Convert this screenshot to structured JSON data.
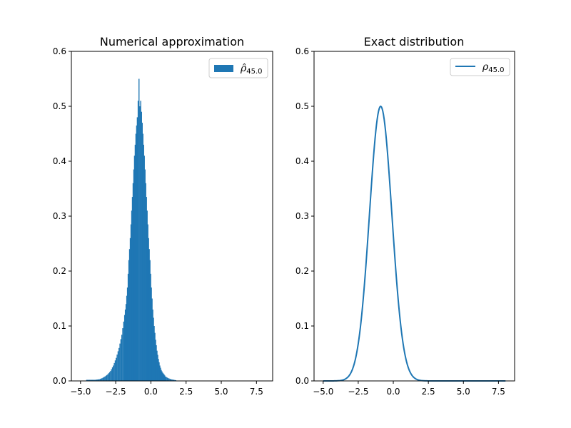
{
  "chart_data": [
    {
      "type": "bar",
      "title": "Numerical approximation",
      "xlabel": "",
      "ylabel": "",
      "xlim": [
        -5.65,
        8.65
      ],
      "ylim": [
        0,
        0.6
      ],
      "x_ticks": [
        -5.0,
        -2.5,
        0.0,
        2.5,
        5.0,
        7.5
      ],
      "x_tick_labels": [
        "−5.0",
        "−2.5",
        "0.0",
        "2.5",
        "5.0",
        "7.5"
      ],
      "y_ticks": [
        0.0,
        0.1,
        0.2,
        0.3,
        0.4,
        0.5,
        0.6
      ],
      "y_tick_labels": [
        "0.0",
        "0.1",
        "0.2",
        "0.3",
        "0.4",
        "0.5",
        "0.6"
      ],
      "bin_width": 0.06,
      "bins": [
        [
          -4.6,
          0.002
        ],
        [
          -4.0,
          0.002
        ],
        [
          -3.7,
          0.003
        ],
        [
          -3.5,
          0.005
        ],
        [
          -3.3,
          0.008
        ],
        [
          -3.1,
          0.012
        ],
        [
          -2.9,
          0.018
        ],
        [
          -2.7,
          0.028
        ],
        [
          -2.5,
          0.042
        ],
        [
          -2.3,
          0.06
        ],
        [
          -2.1,
          0.084
        ],
        [
          -1.9,
          0.12
        ],
        [
          -1.8,
          0.14
        ],
        [
          -1.7,
          0.17
        ],
        [
          -1.6,
          0.22
        ],
        [
          -1.5,
          0.26
        ],
        [
          -1.4,
          0.31
        ],
        [
          -1.3,
          0.36
        ],
        [
          -1.2,
          0.41
        ],
        [
          -1.1,
          0.45
        ],
        [
          -1.0,
          0.48
        ],
        [
          -0.94,
          0.51
        ],
        [
          -0.88,
          0.55
        ],
        [
          -0.82,
          0.5
        ],
        [
          -0.76,
          0.51
        ],
        [
          -0.7,
          0.49
        ],
        [
          -0.6,
          0.45
        ],
        [
          -0.5,
          0.41
        ],
        [
          -0.4,
          0.36
        ],
        [
          -0.3,
          0.31
        ],
        [
          -0.2,
          0.26
        ],
        [
          -0.1,
          0.22
        ],
        [
          0.0,
          0.17
        ],
        [
          0.1,
          0.13
        ],
        [
          0.2,
          0.1
        ],
        [
          0.3,
          0.075
        ],
        [
          0.4,
          0.055
        ],
        [
          0.5,
          0.04
        ],
        [
          0.6,
          0.028
        ],
        [
          0.7,
          0.02
        ],
        [
          0.8,
          0.015
        ],
        [
          0.9,
          0.012
        ],
        [
          1.0,
          0.008
        ],
        [
          1.2,
          0.005
        ],
        [
          1.4,
          0.003
        ],
        [
          1.6,
          0.002
        ],
        [
          1.8,
          0.001
        ]
      ],
      "color": "#1f77b4",
      "grid": false,
      "legend": {
        "placement": "top-right",
        "entries": [
          {
            "symbol": "ρ̂",
            "subscript": "45.0",
            "marker": "patch"
          }
        ]
      }
    },
    {
      "type": "line",
      "title": "Exact distribution",
      "xlabel": "",
      "ylabel": "",
      "xlim": [
        -5.65,
        8.65
      ],
      "ylim": [
        0,
        0.6
      ],
      "x_ticks": [
        -5.0,
        -2.5,
        0.0,
        2.5,
        5.0,
        7.5
      ],
      "x_tick_labels": [
        "−5.0",
        "−2.5",
        "0.0",
        "2.5",
        "5.0",
        "7.5"
      ],
      "y_ticks": [
        0.0,
        0.1,
        0.2,
        0.3,
        0.4,
        0.5,
        0.6
      ],
      "y_tick_labels": [
        "0.0",
        "0.1",
        "0.2",
        "0.3",
        "0.4",
        "0.5",
        "0.6"
      ],
      "x_range": [
        -5.0,
        8.0
      ],
      "peak": {
        "x": -0.9,
        "y": 0.5
      },
      "std": 0.8,
      "sample_count": 261,
      "color": "#1f77b4",
      "grid": false,
      "legend": {
        "placement": "top-right",
        "entries": [
          {
            "symbol": "ρ",
            "subscript": "45.0",
            "marker": "line"
          }
        ]
      }
    }
  ]
}
